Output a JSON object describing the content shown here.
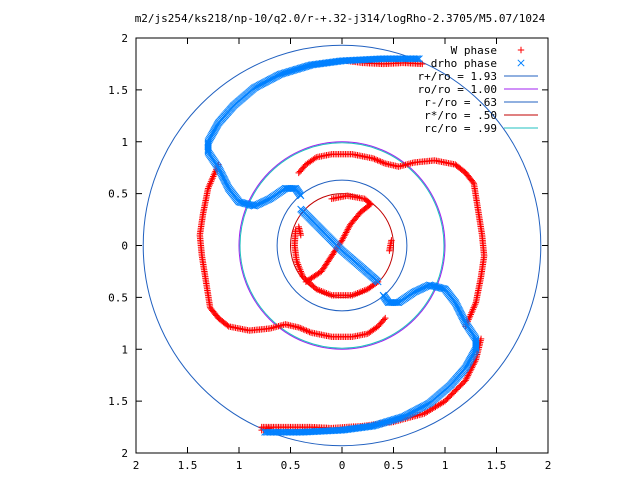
{
  "chart_data": {
    "type": "scatter",
    "title": "m2/js254/ks218/np-10/q2.0/r-+.32-j314/logRho-2.3705/M5.07/1024",
    "xlim": [
      -2,
      2
    ],
    "ylim": [
      -2,
      2
    ],
    "x_tick_values": [
      -2,
      -1.5,
      -1,
      -0.5,
      0,
      0.5,
      1,
      1.5,
      2
    ],
    "x_tick_labels": [
      "2",
      "1.5",
      "1",
      "0.5",
      "0",
      "0.5",
      "1",
      "1.5",
      "2"
    ],
    "y_tick_values": [
      2,
      1.5,
      1,
      0.5,
      0,
      -0.5,
      -1,
      -1.5,
      -2
    ],
    "y_tick_labels": [
      "2",
      "1.5",
      "1",
      "0.5",
      "0",
      "0.5",
      "1",
      "1.5",
      "2"
    ],
    "grid": false,
    "legend_position": "top-right",
    "series": [
      {
        "name": "W phase",
        "marker": "plus",
        "color": "#ff0000",
        "segments": [
          [
            [
              0.78,
              1.75
            ],
            [
              0.6,
              1.76
            ],
            [
              0.4,
              1.75
            ],
            [
              0.2,
              1.76
            ],
            [
              0.05,
              1.78
            ]
          ],
          [
            [
              -1.2,
              0.78
            ],
            [
              -1.3,
              0.55
            ],
            [
              -1.35,
              0.3
            ],
            [
              -1.38,
              0.1
            ],
            [
              -1.36,
              -0.1
            ],
            [
              -1.32,
              -0.35
            ],
            [
              -1.28,
              -0.6
            ],
            [
              -1.2,
              -0.7
            ],
            [
              -1.1,
              -0.78
            ],
            [
              -0.9,
              -0.82
            ],
            [
              -0.7,
              -0.8
            ],
            [
              -0.55,
              -0.76
            ],
            [
              -0.42,
              -0.79
            ],
            [
              -0.3,
              -0.84
            ],
            [
              -0.1,
              -0.88
            ],
            [
              0.1,
              -0.88
            ],
            [
              0.25,
              -0.85
            ],
            [
              0.35,
              -0.78
            ],
            [
              0.42,
              -0.7
            ]
          ],
          [
            [
              -0.42,
              0.7
            ],
            [
              -0.35,
              0.78
            ],
            [
              -0.25,
              0.85
            ],
            [
              -0.1,
              0.88
            ],
            [
              0.1,
              0.88
            ],
            [
              0.3,
              0.84
            ],
            [
              0.42,
              0.79
            ],
            [
              0.55,
              0.76
            ],
            [
              0.7,
              0.8
            ],
            [
              0.9,
              0.82
            ],
            [
              1.1,
              0.78
            ],
            [
              1.2,
              0.7
            ],
            [
              1.28,
              0.6
            ],
            [
              1.32,
              0.35
            ],
            [
              1.36,
              0.1
            ],
            [
              1.38,
              -0.1
            ],
            [
              1.35,
              -0.3
            ],
            [
              1.3,
              -0.55
            ],
            [
              1.2,
              -0.78
            ]
          ],
          [
            [
              1.35,
              -0.9
            ],
            [
              1.3,
              -1.1
            ],
            [
              1.2,
              -1.3
            ],
            [
              1.0,
              -1.5
            ],
            [
              0.8,
              -1.62
            ],
            [
              0.5,
              -1.7
            ],
            [
              0.2,
              -1.74
            ],
            [
              -0.1,
              -1.76
            ],
            [
              -0.3,
              -1.75
            ],
            [
              -0.45,
              -1.75
            ],
            [
              -0.6,
              -1.75
            ],
            [
              -0.78,
              -1.75
            ]
          ],
          [
            [
              -0.78,
              -1.78
            ],
            [
              -0.7,
              -1.76
            ]
          ],
          [
            [
              -0.45,
              0.15
            ],
            [
              -0.46,
              0.0
            ],
            [
              -0.44,
              -0.15
            ],
            [
              -0.38,
              -0.3
            ],
            [
              -0.25,
              -0.42
            ],
            [
              -0.1,
              -0.48
            ],
            [
              0.1,
              -0.48
            ],
            [
              0.25,
              -0.42
            ],
            [
              0.35,
              -0.35
            ]
          ],
          [
            [
              0.48,
              0.05
            ],
            [
              0.46,
              -0.05
            ]
          ],
          [
            [
              -0.35,
              -0.35
            ],
            [
              -0.2,
              -0.25
            ],
            [
              -0.1,
              -0.1
            ],
            [
              0.0,
              0.05
            ],
            [
              0.08,
              0.2
            ],
            [
              0.18,
              0.32
            ],
            [
              0.28,
              0.4
            ],
            [
              0.22,
              0.45
            ],
            [
              0.05,
              0.48
            ],
            [
              -0.1,
              0.45
            ]
          ],
          [
            [
              -0.42,
              0.18
            ],
            [
              -0.4,
              0.1
            ]
          ]
        ]
      },
      {
        "name": "drho phase",
        "marker": "cross",
        "color": "#0080ff",
        "segments": [
          [
            [
              0.75,
              1.8
            ],
            [
              0.4,
              1.8
            ],
            [
              0.0,
              1.78
            ],
            [
              -0.3,
              1.74
            ],
            [
              -0.6,
              1.65
            ],
            [
              -0.85,
              1.52
            ],
            [
              -1.05,
              1.35
            ],
            [
              -1.2,
              1.18
            ],
            [
              -1.3,
              1.0
            ],
            [
              -1.3,
              0.9
            ],
            [
              -1.2,
              0.75
            ],
            [
              -1.1,
              0.55
            ],
            [
              -1.0,
              0.42
            ],
            [
              -0.85,
              0.38
            ],
            [
              -0.7,
              0.45
            ],
            [
              -0.55,
              0.55
            ],
            [
              -0.45,
              0.55
            ],
            [
              -0.4,
              0.48
            ]
          ],
          [
            [
              -0.4,
              0.35
            ],
            [
              -0.2,
              0.15
            ],
            [
              0.0,
              -0.05
            ],
            [
              0.2,
              -0.22
            ],
            [
              0.35,
              -0.35
            ]
          ],
          [
            [
              0.4,
              -0.48
            ],
            [
              0.45,
              -0.55
            ],
            [
              0.55,
              -0.55
            ],
            [
              0.7,
              -0.45
            ],
            [
              0.85,
              -0.38
            ],
            [
              1.0,
              -0.42
            ],
            [
              1.1,
              -0.55
            ],
            [
              1.2,
              -0.75
            ],
            [
              1.3,
              -0.9
            ],
            [
              1.3,
              -1.0
            ],
            [
              1.2,
              -1.18
            ],
            [
              1.05,
              -1.35
            ],
            [
              0.85,
              -1.52
            ],
            [
              0.6,
              -1.65
            ],
            [
              0.3,
              -1.74
            ],
            [
              0.0,
              -1.78
            ],
            [
              -0.4,
              -1.8
            ],
            [
              -0.75,
              -1.8
            ]
          ]
        ]
      },
      {
        "name": "r+/ro = 1.93",
        "type": "circle",
        "r": 1.93,
        "color": "#2060c0"
      },
      {
        "name": "ro/ro = 1.00",
        "type": "circle",
        "r": 1.0,
        "color": "#a020f0"
      },
      {
        "name": "r-/ro = .63",
        "type": "circle",
        "r": 0.63,
        "color": "#2060c0"
      },
      {
        "name": "r*/ro = .50",
        "type": "circle",
        "r": 0.5,
        "color": "#c00000"
      },
      {
        "name": "rc/ro = .99",
        "type": "circle",
        "r": 0.99,
        "color": "#20c0c0"
      }
    ]
  }
}
